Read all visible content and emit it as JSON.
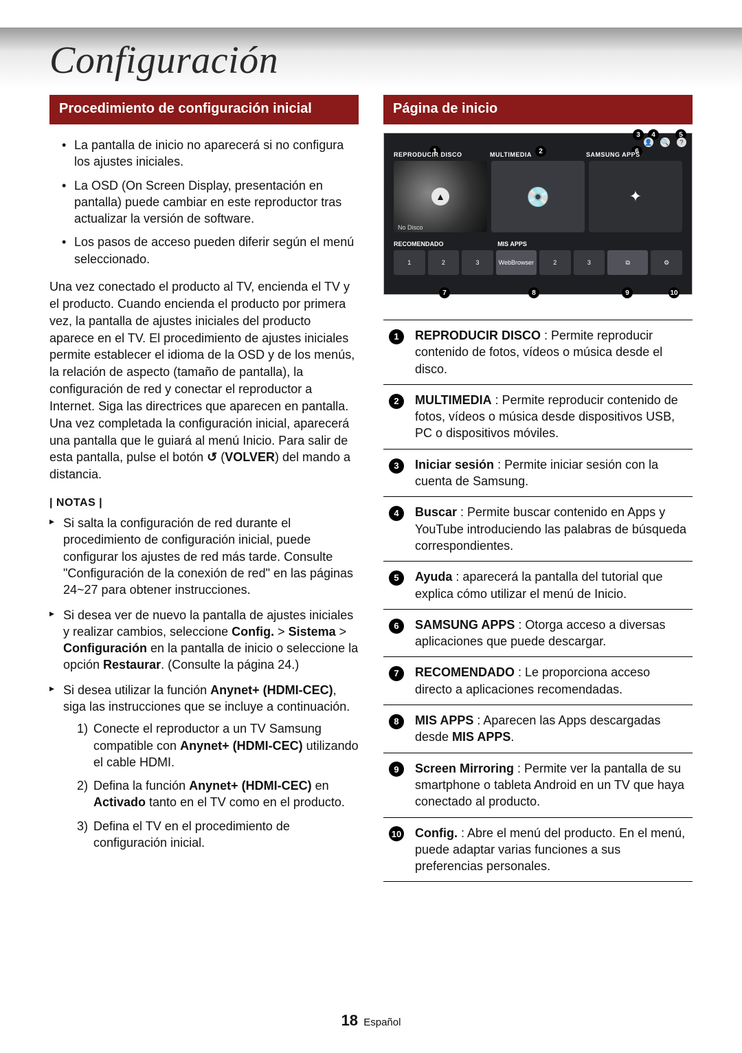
{
  "page": {
    "title": "Configuración",
    "footer_num": "18",
    "footer_lang": "Español"
  },
  "left": {
    "heading": "Procedimiento de configuración inicial",
    "bullets": [
      "La pantalla de inicio no aparecerá si no configura los ajustes iniciales.",
      "La OSD (On Screen Display, presentación en pantalla) puede cambiar en este reproductor tras actualizar la versión de software.",
      "Los pasos de acceso pueden diferir según el menú seleccionado."
    ],
    "para_a": "Una vez conectado el producto al TV, encienda el TV y el producto. Cuando encienda el producto por primera vez, la pantalla de ajustes iniciales del producto aparece en el TV. El procedimiento de ajustes iniciales permite establecer el idioma de la OSD y de los menús, la relación de aspecto (tamaño de pantalla), la configuración de red y conectar el reproductor a Internet. Siga las directrices que aparecen en pantalla.",
    "para_b": "Una vez completada la configuración inicial, aparecerá una pantalla que le guiará al menú Inicio. Para salir de esta pantalla, pulse el botón ",
    "volver": "VOLVER",
    "para_b_tail": ") del mando a distancia.",
    "notas_label": "| NOTAS |",
    "note1": "Si salta la configuración de red durante el procedimiento de configuración inicial, puede configurar los ajustes de red más tarde. Consulte \"Configuración de la conexión de red\" en las páginas 24~27 para obtener instrucciones.",
    "note2_a": "Si desea ver de nuevo la pantalla de ajustes iniciales y realizar cambios, seleccione ",
    "note2_b": "Config.",
    "note2_c": " > ",
    "note2_d": "Sistema",
    "note2_e": " > ",
    "note2_f": "Configuración",
    "note2_g": " en la pantalla de inicio o seleccione la opción ",
    "note2_h": "Restaurar",
    "note2_i": ". (Consulte la página 24.)",
    "note3_a": "Si desea utilizar la función ",
    "note3_b": "Anynet+ (HDMI-CEC)",
    "note3_c": ", siga las instrucciones que se incluye a continuación.",
    "sub1_a": "Conecte el reproductor a un TV Samsung compatible con ",
    "sub1_b": "Anynet+ (HDMI-CEC)",
    "sub1_c": " utilizando el cable HDMI.",
    "sub2_a": "Defina la función ",
    "sub2_b": "Anynet+ (HDMI-CEC)",
    "sub2_c": " en ",
    "sub2_d": "Activado",
    "sub2_e": " tanto en el TV como en el producto.",
    "sub3": "Defina el TV en el procedimiento de configuración inicial."
  },
  "right": {
    "heading": "Página de inicio",
    "tv": {
      "label1": "REPRODUCIR DISCO",
      "label2": "MULTIMEDIA",
      "label3": "SAMSUNG APPS",
      "no_disco": "No Disco",
      "recomendado": "RECOMENDADO",
      "misapps": "MIS APPS",
      "webbrowser": "WebBrowser",
      "screenmirroring": "Screen Mirroring",
      "config": "Config."
    },
    "markers": {
      "n1": "1",
      "n2": "2",
      "n3": "3",
      "n4": "4",
      "n5": "5",
      "n6": "6",
      "n7": "7",
      "n8": "8",
      "n9": "9",
      "n10": "10"
    },
    "legend": [
      {
        "n": "1",
        "b": "REPRODUCIR DISCO",
        "t": " : Permite reproducir contenido de fotos, vídeos o música desde el disco."
      },
      {
        "n": "2",
        "b": "MULTIMEDIA",
        "t": " : Permite reproducir contenido de fotos, vídeos o música desde dispositivos USB, PC o dispositivos móviles."
      },
      {
        "n": "3",
        "b": "Iniciar sesión",
        "t": " : Permite iniciar sesión con la cuenta de Samsung."
      },
      {
        "n": "4",
        "b": "Buscar",
        "t": " : Permite buscar contenido en Apps y YouTube introduciendo las palabras de búsqueda correspondientes."
      },
      {
        "n": "5",
        "b": "Ayuda",
        "t": " : aparecerá la pantalla del tutorial que explica cómo utilizar el menú de Inicio."
      },
      {
        "n": "6",
        "b": "SAMSUNG APPS",
        "t": " : Otorga acceso a diversas aplicaciones que puede descargar."
      },
      {
        "n": "7",
        "b": "RECOMENDADO",
        "t": " : Le proporciona acceso directo a aplicaciones recomendadas."
      },
      {
        "n": "8",
        "b": "MIS APPS",
        "t": " : Aparecen las Apps descargadas desde ",
        "b2": "MIS APPS",
        "t2": "."
      },
      {
        "n": "9",
        "b": "Screen Mirroring",
        "t": " : Permite ver la pantalla de su smartphone o tableta Android en un TV que haya conectado al producto."
      },
      {
        "n": "10",
        "b": "Config.",
        "t": " : Abre el menú del producto. En el menú, puede adaptar varias funciones a sus preferencias personales."
      }
    ]
  }
}
